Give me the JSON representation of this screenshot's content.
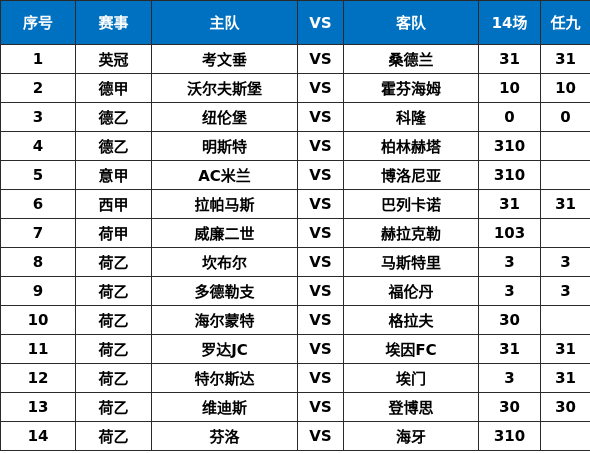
{
  "header": {
    "index": "序号",
    "league": "赛事",
    "home": "主队",
    "vs": "VS",
    "away": "客队",
    "fourteen": "14场",
    "ren9": "任九"
  },
  "rows": [
    {
      "index": "1",
      "league": "英冠",
      "home": "考文垂",
      "vs": "VS",
      "away": "桑德兰",
      "fourteen": "31",
      "ren9": "31"
    },
    {
      "index": "2",
      "league": "德甲",
      "home": "沃尔夫斯堡",
      "vs": "VS",
      "away": "霍芬海姆",
      "fourteen": "10",
      "ren9": "10"
    },
    {
      "index": "3",
      "league": "德乙",
      "home": "纽伦堡",
      "vs": "VS",
      "away": "科隆",
      "fourteen": "0",
      "ren9": "0"
    },
    {
      "index": "4",
      "league": "德乙",
      "home": "明斯特",
      "vs": "VS",
      "away": "柏林赫塔",
      "fourteen": "310",
      "ren9": ""
    },
    {
      "index": "5",
      "league": "意甲",
      "home": "AC米兰",
      "vs": "VS",
      "away": "博洛尼亚",
      "fourteen": "310",
      "ren9": ""
    },
    {
      "index": "6",
      "league": "西甲",
      "home": "拉帕马斯",
      "vs": "VS",
      "away": "巴列卡诺",
      "fourteen": "31",
      "ren9": "31"
    },
    {
      "index": "7",
      "league": "荷甲",
      "home": "威廉二世",
      "vs": "VS",
      "away": "赫拉克勒",
      "fourteen": "103",
      "ren9": ""
    },
    {
      "index": "8",
      "league": "荷乙",
      "home": "坎布尔",
      "vs": "VS",
      "away": "马斯特里",
      "fourteen": "3",
      "ren9": "3"
    },
    {
      "index": "9",
      "league": "荷乙",
      "home": "多德勒支",
      "vs": "VS",
      "away": "福伦丹",
      "fourteen": "3",
      "ren9": "3"
    },
    {
      "index": "10",
      "league": "荷乙",
      "home": "海尔蒙特",
      "vs": "VS",
      "away": "格拉夫",
      "fourteen": "30",
      "ren9": ""
    },
    {
      "index": "11",
      "league": "荷乙",
      "home": "罗达JC",
      "vs": "VS",
      "away": "埃因FC",
      "fourteen": "31",
      "ren9": "31"
    },
    {
      "index": "12",
      "league": "荷乙",
      "home": "特尔斯达",
      "vs": "VS",
      "away": "埃门",
      "fourteen": "3",
      "ren9": "31"
    },
    {
      "index": "13",
      "league": "荷乙",
      "home": "维迪斯",
      "vs": "VS",
      "away": "登博思",
      "fourteen": "30",
      "ren9": "30"
    },
    {
      "index": "14",
      "league": "荷乙",
      "home": "芬洛",
      "vs": "VS",
      "away": "海牙",
      "fourteen": "310",
      "ren9": ""
    }
  ],
  "colors": {
    "header_bg": "#0070c0",
    "header_text": "#ffffff",
    "grid": "#2a2a2a"
  }
}
